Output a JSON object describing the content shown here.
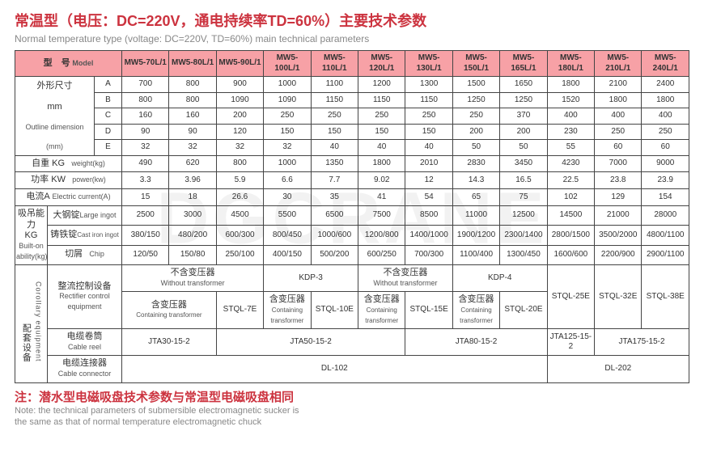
{
  "title_cn": "常温型（电压：DC=220V，通电持续率TD=60%）主要技术参数",
  "title_en": "Normal temperature type (voltage: DC=220V, TD=60%) main technical parameters",
  "header_model_cn": "型　号",
  "header_model_en": "Model",
  "models": [
    "MW5-70L/1",
    "MW5-80L/1",
    "MW5-90L/1",
    "MW5-100L/1",
    "MW5-110L/1",
    "MW5-120L/1",
    "MW5-130L/1",
    "MW5-150L/1",
    "MW5-165L/1",
    "MW5-180L/1",
    "MW5-210L/1",
    "MW5-240L/1"
  ],
  "outline_cn": "外形尺寸",
  "outline_unit": "mm",
  "outline_en1": "Outline dimension",
  "outline_en2": "(mm)",
  "dim_rows": [
    {
      "k": "A",
      "v": [
        "700",
        "800",
        "900",
        "1000",
        "1100",
        "1200",
        "1300",
        "1500",
        "1650",
        "1800",
        "2100",
        "2400"
      ]
    },
    {
      "k": "B",
      "v": [
        "800",
        "800",
        "1090",
        "1090",
        "1150",
        "1150",
        "1150",
        "1250",
        "1250",
        "1520",
        "1800",
        "1800"
      ]
    },
    {
      "k": "C",
      "v": [
        "160",
        "160",
        "200",
        "250",
        "250",
        "250",
        "250",
        "250",
        "370",
        "400",
        "400",
        "400"
      ]
    },
    {
      "k": "D",
      "v": [
        "90",
        "90",
        "120",
        "150",
        "150",
        "150",
        "150",
        "200",
        "200",
        "230",
        "250",
        "250"
      ]
    },
    {
      "k": "E",
      "v": [
        "32",
        "32",
        "32",
        "32",
        "40",
        "40",
        "40",
        "50",
        "50",
        "55",
        "60",
        "60"
      ]
    }
  ],
  "weight_label_cn": "自重 KG",
  "weight_label_en": "weight(kg)",
  "weight": [
    "490",
    "620",
    "800",
    "1000",
    "1350",
    "1800",
    "2010",
    "2830",
    "3450",
    "4230",
    "7000",
    "9000"
  ],
  "power_label_cn": "功率 KW",
  "power_label_en": "power(kw)",
  "power": [
    "3.3",
    "3.96",
    "5.9",
    "6.6",
    "7.7",
    "9.02",
    "12",
    "14.3",
    "16.5",
    "22.5",
    "23.8",
    "23.9"
  ],
  "current_label_cn": "电流A",
  "current_label_en": "Electric current(A)",
  "current": [
    "15",
    "18",
    "26.6",
    "30",
    "35",
    "41",
    "54",
    "65",
    "75",
    "102",
    "129",
    "154"
  ],
  "ability_group_cn": "吸吊能力",
  "ability_group_kg": "KG",
  "ability_group_en1": "Built-on",
  "ability_group_en2": "ability(kg)",
  "ingot_cn": "大钢锭",
  "ingot_en": "Large ingot",
  "ingot": [
    "2500",
    "3000",
    "4500",
    "5500",
    "6500",
    "7500",
    "8500",
    "11000",
    "12500",
    "14500",
    "21000",
    "28000"
  ],
  "cast_cn": "铸铁锭",
  "cast_en": "Cast iron ingot",
  "cast": [
    "380/150",
    "480/200",
    "600/300",
    "800/450",
    "1000/600",
    "1200/800",
    "1400/1000",
    "1900/1200",
    "2300/1400",
    "2800/1500",
    "3500/2000",
    "4800/1100"
  ],
  "chip_cn": "切屑",
  "chip_en": "Chip",
  "chip": [
    "120/50",
    "150/80",
    "250/100",
    "400/150",
    "500/200",
    "600/250",
    "700/300",
    "1100/400",
    "1300/450",
    "1600/600",
    "2200/900",
    "2900/1100"
  ],
  "corollary_group_cn": "配套设备",
  "corollary_group_en": "Corollary equipment",
  "rectifier_cn": "整流控制设备",
  "rectifier_en": "Rectifier control equipment",
  "wo_trans_cn": "不含变压器",
  "wo_trans_en": "Without transformer",
  "kdp3": "KDP-3",
  "kdp4": "KDP-4",
  "with_trans_cn": "含变压器",
  "with_trans_en": "Containing transformer",
  "stql": [
    "STQL-7E",
    "STQL-10E",
    "STQL-15E",
    "STQL-20E",
    "STQL-25E",
    "STQL-32E",
    "STQL-38E"
  ],
  "cablereel_cn": "电缆卷筒",
  "cablereel_en": "Cable reel",
  "jta": [
    "JTA30-15-2",
    "JTA50-15-2",
    "JTA80-15-2",
    "JTA125-15-2",
    "JTA175-15-2"
  ],
  "cableconn_cn": "电缆连接器",
  "cableconn_en": "Cable connector",
  "dl": [
    "DL-102",
    "DL-202"
  ],
  "footnote_cn": "注：潜水型电磁吸盘技术参数与常温型电磁吸盘相同",
  "footnote_en": "Note: the technical parameters of submersible electromagnetic sucker is\nthe same as that of normal temperature electromagnetic chuck",
  "colors": {
    "accent": "#cc333f",
    "header_bg": "#f7a1a6",
    "border": "#444444"
  }
}
